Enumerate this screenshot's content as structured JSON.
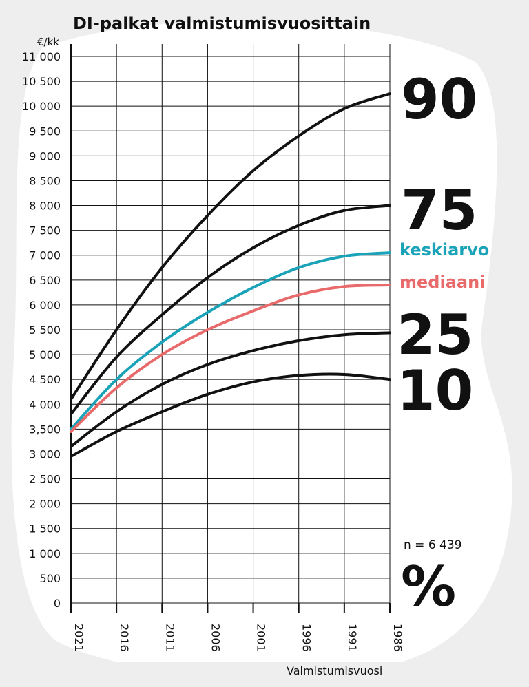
{
  "chart_data": {
    "type": "line",
    "title": "DI-palkat valmistumisvuosittain",
    "unit_label": "€/kk",
    "xlabel": "Valmistumisvuosi",
    "ylim": [
      0,
      11000
    ],
    "yticks": [
      {
        "value": 0,
        "label": "0"
      },
      {
        "value": 500,
        "label": "500"
      },
      {
        "value": 1000,
        "label": "1 000"
      },
      {
        "value": 1500,
        "label": "1 500"
      },
      {
        "value": 2000,
        "label": "2 000"
      },
      {
        "value": 2500,
        "label": "2 500"
      },
      {
        "value": 3000,
        "label": "3 000"
      },
      {
        "value": 3500,
        "label": "3,500"
      },
      {
        "value": 4000,
        "label": "4 000"
      },
      {
        "value": 4500,
        "label": "4 500"
      },
      {
        "value": 5000,
        "label": "5 000"
      },
      {
        "value": 5500,
        "label": "5 500"
      },
      {
        "value": 6000,
        "label": "6 000"
      },
      {
        "value": 6500,
        "label": "6 500"
      },
      {
        "value": 7000,
        "label": "7 000"
      },
      {
        "value": 7500,
        "label": "7 500"
      },
      {
        "value": 8000,
        "label": "8 000"
      },
      {
        "value": 8500,
        "label": "8 500"
      },
      {
        "value": 9000,
        "label": "9 000"
      },
      {
        "value": 9500,
        "label": "9 500"
      },
      {
        "value": 10000,
        "label": "10 000"
      },
      {
        "value": 10500,
        "label": "10 500"
      },
      {
        "value": 11000,
        "label": "11 000"
      }
    ],
    "xticks": [
      "2021",
      "2016",
      "2011",
      "2006",
      "2001",
      "1996",
      "1991",
      "1986"
    ],
    "x": [
      2021,
      2016,
      2011,
      2006,
      2001,
      1996,
      1991,
      1986
    ],
    "series": [
      {
        "name": "90",
        "color": "#111111",
        "values": [
          4100,
          5500,
          6750,
          7800,
          8700,
          9400,
          9950,
          10250
        ]
      },
      {
        "name": "75",
        "color": "#111111",
        "values": [
          3800,
          4950,
          5800,
          6550,
          7150,
          7600,
          7900,
          8000
        ]
      },
      {
        "name": "keskiarvo",
        "color": "#1aa3b8",
        "values": [
          3500,
          4500,
          5250,
          5850,
          6350,
          6750,
          6980,
          7050
        ]
      },
      {
        "name": "mediaani",
        "color": "#e86a6a",
        "values": [
          3450,
          4330,
          5000,
          5500,
          5880,
          6200,
          6370,
          6400
        ]
      },
      {
        "name": "25",
        "color": "#111111",
        "values": [
          3150,
          3850,
          4400,
          4800,
          5080,
          5280,
          5400,
          5440
        ]
      },
      {
        "name": "10",
        "color": "#111111",
        "values": [
          2950,
          3450,
          3850,
          4200,
          4450,
          4580,
          4600,
          4500
        ]
      }
    ],
    "percent_sign": "%",
    "n_label": "n = 6 439"
  }
}
